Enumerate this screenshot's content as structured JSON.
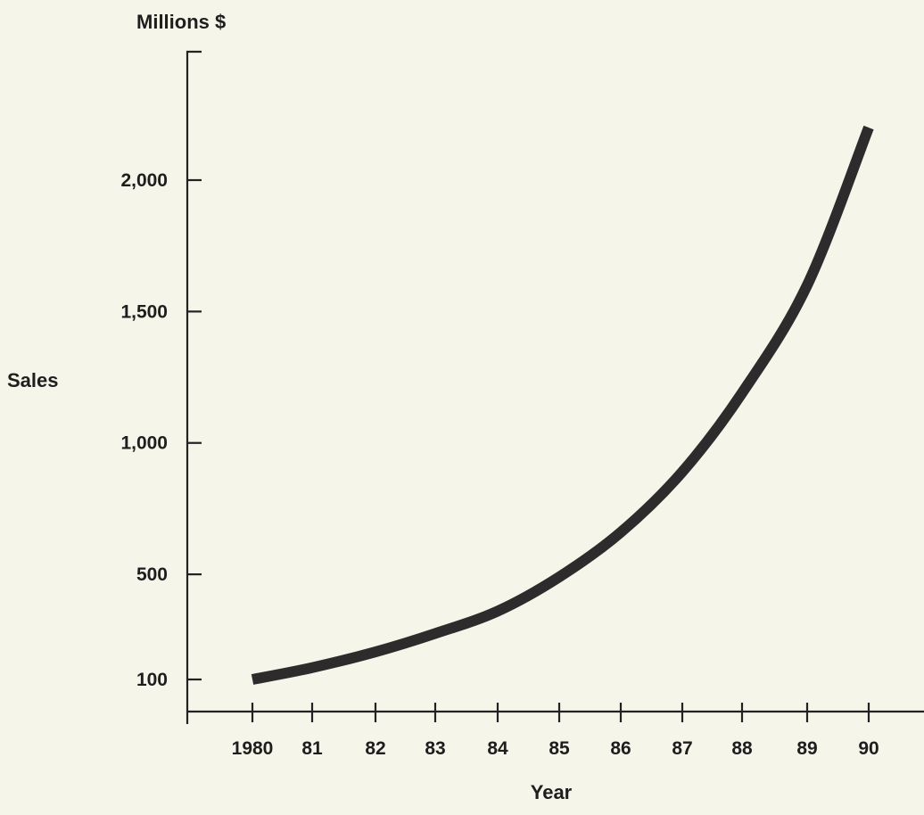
{
  "chart_data": {
    "type": "line",
    "title": "",
    "ylabel": "Sales",
    "yunit": "Millions $",
    "xlabel": "Year",
    "x_categories": [
      "1980",
      "81",
      "82",
      "83",
      "84",
      "85",
      "86",
      "87",
      "88",
      "89",
      "90"
    ],
    "y_ticks": [
      100,
      500,
      1000,
      1500,
      2000
    ],
    "y_tick_labels": [
      "100",
      "500",
      "1,000",
      "1,500",
      "2,000"
    ],
    "ylim": [
      0,
      2400
    ],
    "grid": false,
    "series": [
      {
        "color": "#2e2b2d",
        "values": [
          100,
          145,
          205,
          275,
          360,
          490,
          660,
          890,
          1190,
          1600,
          2200
        ]
      }
    ]
  }
}
